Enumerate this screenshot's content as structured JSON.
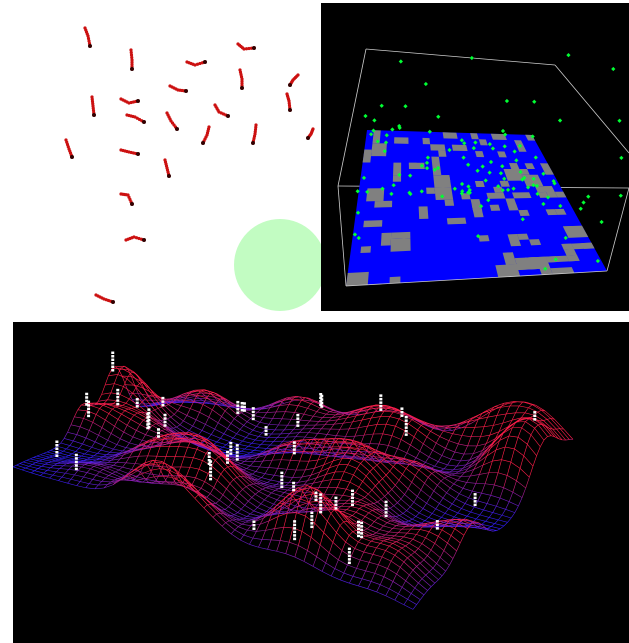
{
  "views": [
    {
      "id": "agent-trails-view",
      "kind": "2d-agents",
      "background": "#ffffff",
      "agent_color": "#cc1111",
      "agent_head_color": "#330000",
      "target_color": "#c2fcc2"
    },
    {
      "id": "cube-grid-view",
      "kind": "3d-box",
      "background": "#000000",
      "floor_color": "#0000ff",
      "patch_color": "#808080",
      "particle_color": "#00ff33",
      "wireframe_color": "#cccccc"
    },
    {
      "id": "terrain-mesh-view",
      "kind": "3d-wire-surface",
      "background": "#000000",
      "mesh_low_color": "#2a1fff",
      "mesh_high_color": "#ff1f4a",
      "marker_color": "#ffffff"
    }
  ]
}
